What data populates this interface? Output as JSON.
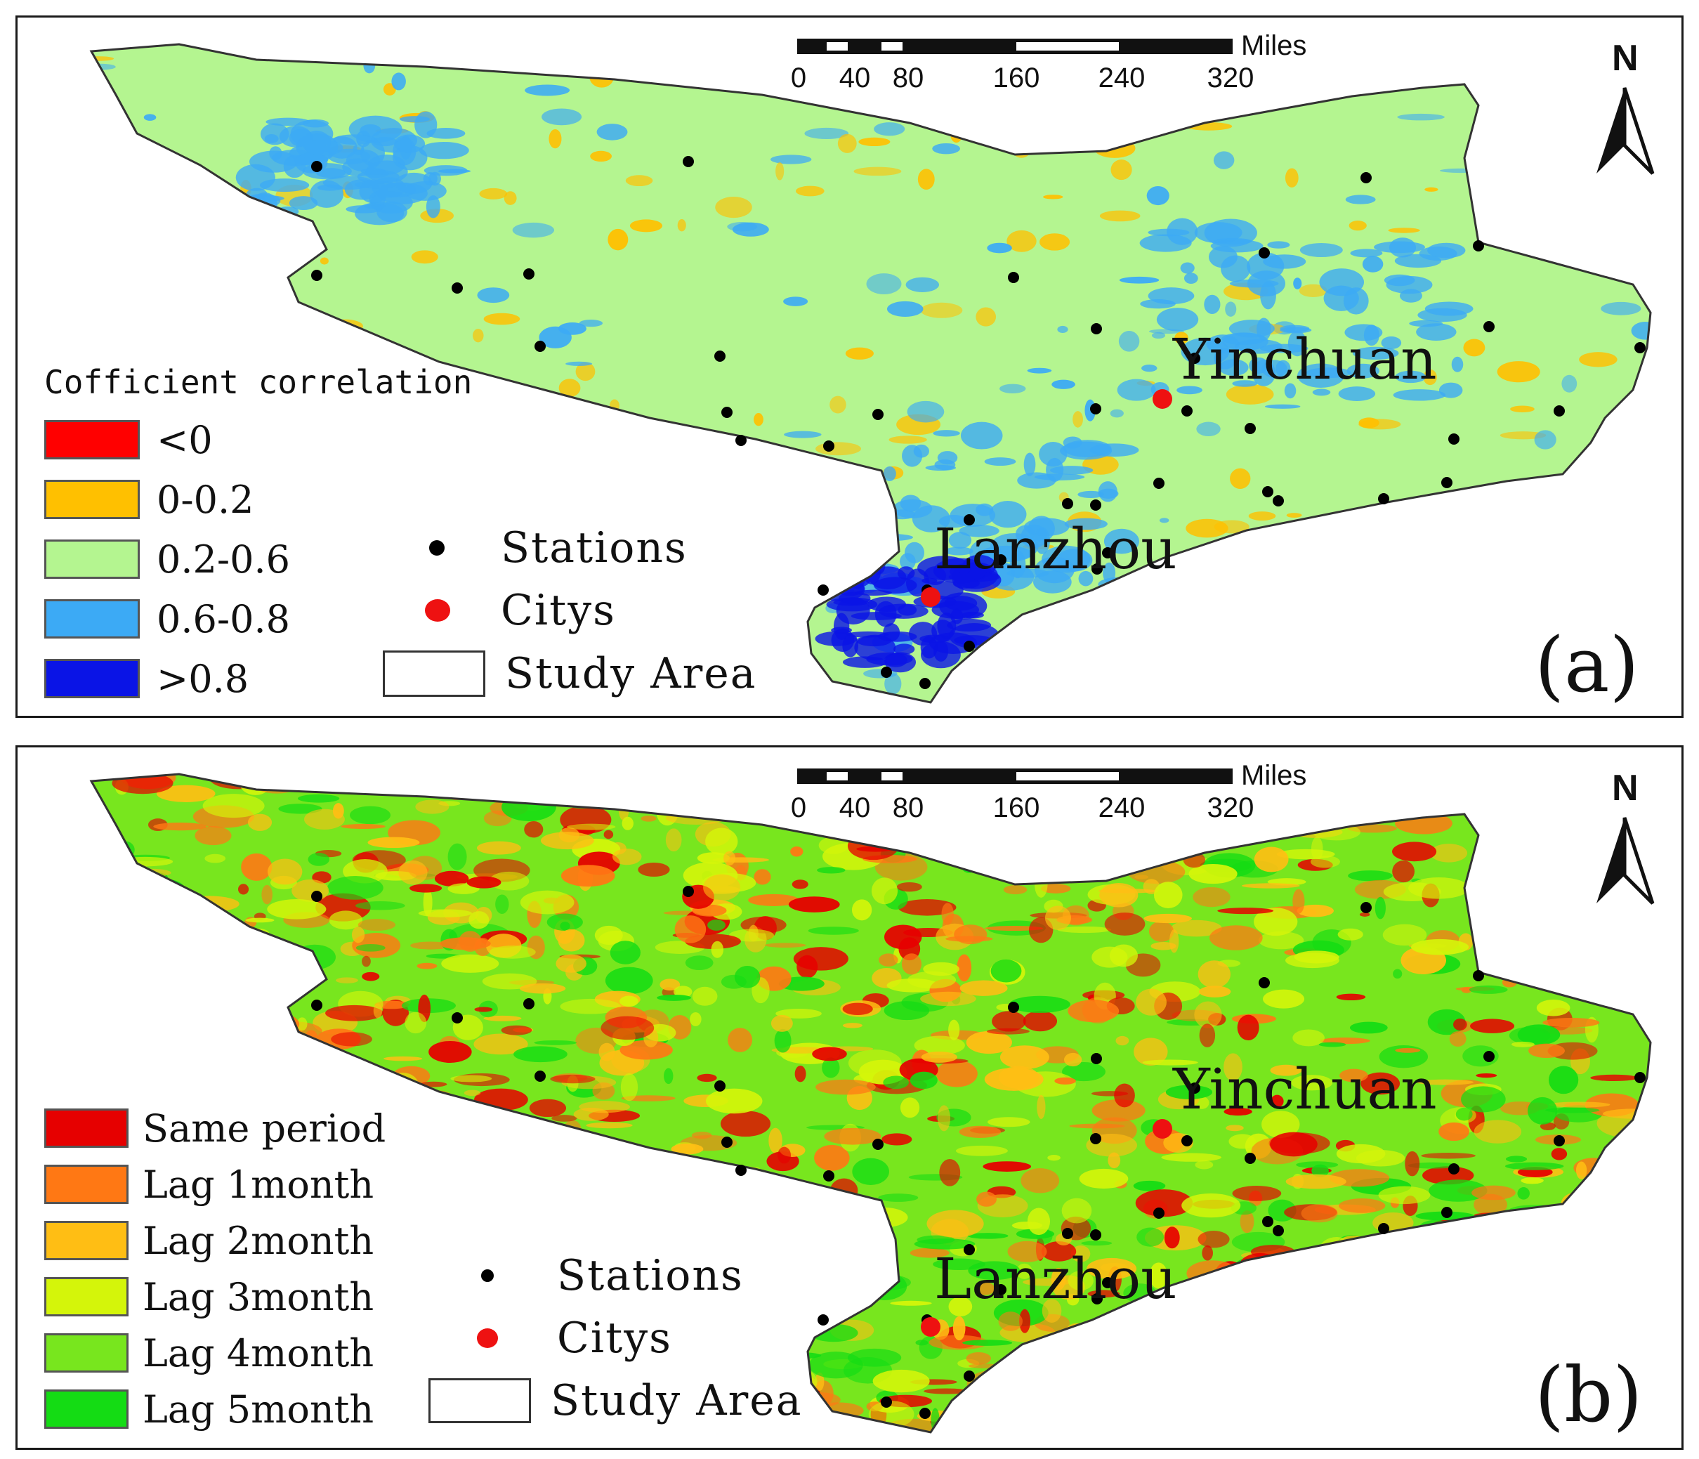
{
  "panels": [
    {
      "id": "a",
      "panel_label": "(a)",
      "legend_title": "Cofficient correlation",
      "classes": [
        {
          "label": "<0",
          "color": "#ff0000"
        },
        {
          "label": "0-0.2",
          "color": "#ffc000"
        },
        {
          "label": "0.2-0.6",
          "color": "#b4f590"
        },
        {
          "label": "0.6-0.8",
          "color": "#3caaf5"
        },
        {
          "label": ">0.8",
          "color": "#0a14e6"
        }
      ],
      "symbols": {
        "stations": "Stations",
        "citys": "Citys",
        "study_area": "Study Area"
      },
      "cities": [
        "Yinchuan",
        "Lanzhou"
      ],
      "scale_unit": "Miles",
      "scale_ticks": [
        "0",
        "40",
        "80",
        "160",
        "240",
        "320"
      ],
      "north": "N",
      "base_color": "#b4f590",
      "patch_colors": [
        "#3caaf5",
        "#ffc000",
        "#0a14e6"
      ]
    },
    {
      "id": "b",
      "panel_label": "(b)",
      "legend_title": "",
      "classes": [
        {
          "label": "Same period",
          "color": "#e60000"
        },
        {
          "label": "Lag 1month",
          "color": "#ff7814"
        },
        {
          "label": "Lag 2month",
          "color": "#ffbe14"
        },
        {
          "label": "Lag 3month",
          "color": "#d4f50a"
        },
        {
          "label": "Lag 4month",
          "color": "#78e61e"
        },
        {
          "label": "Lag 5month",
          "color": "#14dc14"
        }
      ],
      "symbols": {
        "stations": "Stations",
        "citys": "Citys",
        "study_area": "Study Area"
      },
      "cities": [
        "Yinchuan",
        "Lanzhou"
      ],
      "scale_unit": "Miles",
      "scale_ticks": [
        "0",
        "40",
        "80",
        "160",
        "240",
        "320"
      ],
      "north": "N",
      "base_color": "#78e61e",
      "patch_colors": [
        "#ff7814",
        "#ffbe14",
        "#e60000",
        "#14dc14",
        "#d4f50a"
      ]
    }
  ],
  "colors": {
    "station": "#000000",
    "city": "#ee1111",
    "outline": "#333333"
  }
}
